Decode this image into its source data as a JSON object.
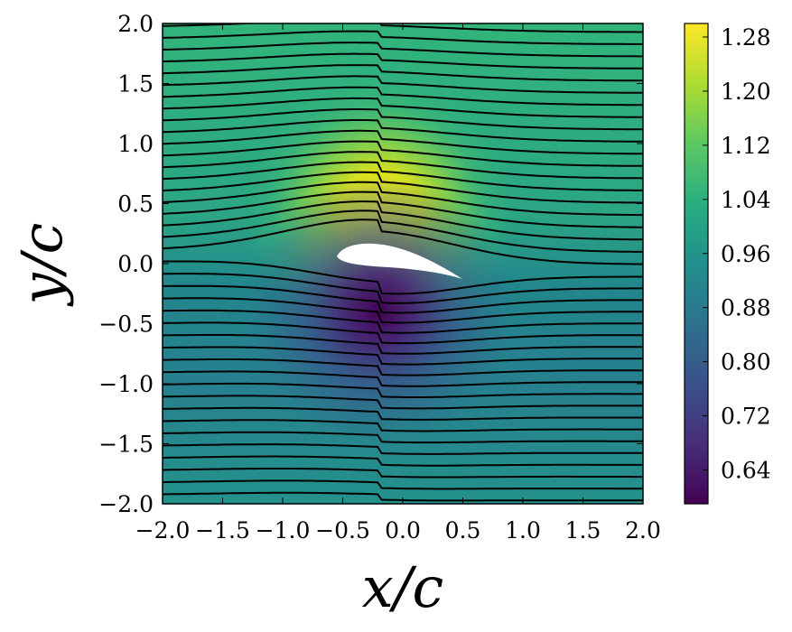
{
  "chart_data": {
    "type": "heatmap",
    "title": "",
    "xlabel": "x/c",
    "ylabel": "y/c",
    "xlim": [
      -2.0,
      2.0
    ],
    "ylim": [
      -2.0,
      2.0
    ],
    "x_ticks": [
      "−2.0",
      "−1.5",
      "−1.0",
      "−0.5",
      "0.0",
      "0.5",
      "1.0",
      "1.5",
      "2.0"
    ],
    "y_ticks": [
      "−2.0",
      "−1.5",
      "−1.0",
      "−0.5",
      "0.0",
      "0.5",
      "1.0",
      "1.5",
      "2.0"
    ],
    "colorbar": {
      "colormap": "viridis",
      "range": [
        0.59,
        1.3
      ],
      "ticks": [
        "0.64",
        "0.72",
        "0.80",
        "0.88",
        "0.96",
        "1.04",
        "1.12",
        "1.20",
        "1.28"
      ]
    },
    "field": "velocity magnitude around airfoil with streamlines",
    "airfoil": {
      "leading_edge": [
        -0.45,
        0.02
      ],
      "trailing_edge": [
        0.5,
        -0.12
      ],
      "max_value_region": {
        "x": -0.2,
        "y": 0.45,
        "value": 1.3
      },
      "min_value_region": {
        "x": -0.35,
        "y": -0.05,
        "value": 0.59
      }
    },
    "streamline_count": 40,
    "grid": false
  }
}
